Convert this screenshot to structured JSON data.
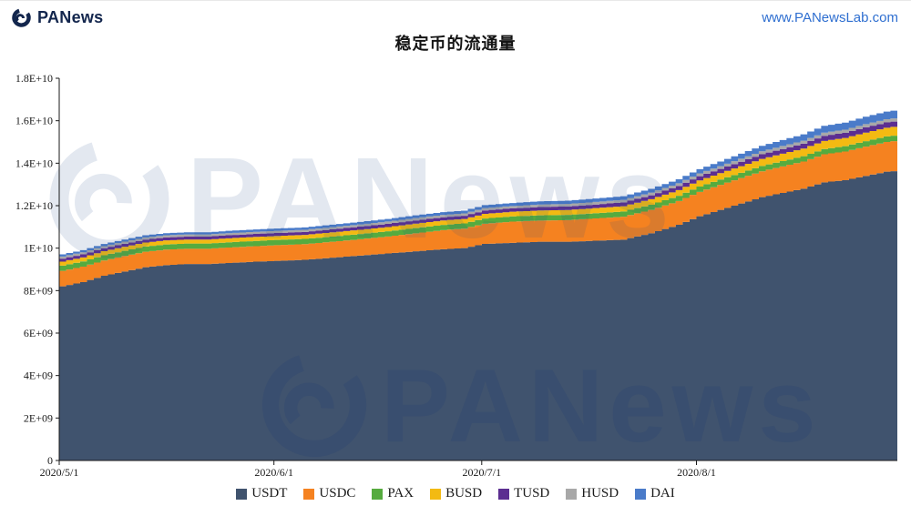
{
  "header": {
    "brand": "PANews",
    "url": "www.PANewsLab.com"
  },
  "title": "稳定币的流通量",
  "watermark": {
    "text": "PANews"
  },
  "colors": {
    "brand": "#13264d",
    "link": "#2f6fd0",
    "axis": "#1a1a1a",
    "watermark_top": "#2a4a8a",
    "watermark_bottom": "#1c3a74"
  },
  "chart_data": {
    "type": "area",
    "stacked": true,
    "title": "稳定币的流通量",
    "xlabel": "",
    "ylabel": "",
    "grid": false,
    "legend_position": "bottom",
    "x_unit": "days since 2020-05-01",
    "x_range": [
      0,
      121
    ],
    "y_range": [
      0,
      18000000000
    ],
    "value_unit": 1000000000,
    "x_ticks": [
      {
        "label": "2020/5/1",
        "day": 0
      },
      {
        "label": "2020/6/1",
        "day": 31
      },
      {
        "label": "2020/7/1",
        "day": 61
      },
      {
        "label": "2020/8/1",
        "day": 92
      }
    ],
    "y_ticks": [
      {
        "label": "0",
        "value": 0
      },
      {
        "label": "2E+09",
        "value": 2000000000
      },
      {
        "label": "4E+09",
        "value": 4000000000
      },
      {
        "label": "6E+09",
        "value": 6000000000
      },
      {
        "label": "8E+09",
        "value": 8000000000
      },
      {
        "label": "1E+10",
        "value": 10000000000
      },
      {
        "label": "1.2E+10",
        "value": 12000000000
      },
      {
        "label": "1.4E+10",
        "value": 14000000000
      },
      {
        "label": "1.6E+10",
        "value": 16000000000
      },
      {
        "label": "1.8E+10",
        "value": 18000000000
      }
    ],
    "x": [
      0,
      3,
      6,
      9,
      12,
      15,
      18,
      21,
      24,
      27,
      31,
      35,
      39,
      43,
      47,
      51,
      55,
      58,
      61,
      65,
      69,
      73,
      77,
      81,
      85,
      89,
      92,
      95,
      98,
      101,
      104,
      107,
      110,
      113,
      116,
      119,
      121
    ],
    "series": [
      {
        "name": "USDT",
        "color": "#40536e",
        "values": [
          8.2,
          8.4,
          8.7,
          8.9,
          9.1,
          9.2,
          9.25,
          9.25,
          9.3,
          9.35,
          9.4,
          9.45,
          9.55,
          9.65,
          9.75,
          9.85,
          9.95,
          10.0,
          10.2,
          10.25,
          10.3,
          10.3,
          10.35,
          10.4,
          10.7,
          11.1,
          11.5,
          11.8,
          12.1,
          12.4,
          12.6,
          12.8,
          13.1,
          13.2,
          13.4,
          13.6,
          13.65
        ]
      },
      {
        "name": "USDC",
        "color": "#f58220",
        "values": [
          0.73,
          0.73,
          0.72,
          0.73,
          0.73,
          0.73,
          0.72,
          0.72,
          0.73,
          0.73,
          0.74,
          0.74,
          0.75,
          0.77,
          0.8,
          0.85,
          0.9,
          0.92,
          0.95,
          1.0,
          1.0,
          1.02,
          1.05,
          1.08,
          1.1,
          1.12,
          1.15,
          1.18,
          1.2,
          1.22,
          1.25,
          1.28,
          1.32,
          1.35,
          1.38,
          1.4,
          1.42
        ]
      },
      {
        "name": "PAX",
        "color": "#56ab3f",
        "values": [
          0.245,
          0.245,
          0.245,
          0.245,
          0.245,
          0.245,
          0.245,
          0.245,
          0.245,
          0.245,
          0.245,
          0.245,
          0.245,
          0.245,
          0.245,
          0.245,
          0.245,
          0.245,
          0.245,
          0.245,
          0.245,
          0.245,
          0.245,
          0.245,
          0.245,
          0.245,
          0.25,
          0.25,
          0.25,
          0.25,
          0.25,
          0.25,
          0.25,
          0.25,
          0.26,
          0.26,
          0.26
        ]
      },
      {
        "name": "BUSD",
        "color": "#f3ba12",
        "values": [
          0.19,
          0.19,
          0.19,
          0.19,
          0.19,
          0.19,
          0.19,
          0.19,
          0.19,
          0.19,
          0.19,
          0.19,
          0.2,
          0.2,
          0.2,
          0.21,
          0.21,
          0.21,
          0.22,
          0.22,
          0.23,
          0.23,
          0.24,
          0.25,
          0.26,
          0.27,
          0.29,
          0.3,
          0.31,
          0.33,
          0.35,
          0.36,
          0.38,
          0.39,
          0.4,
          0.41,
          0.42
        ]
      },
      {
        "name": "TUSD",
        "color": "#5c2e91",
        "values": [
          0.14,
          0.14,
          0.14,
          0.14,
          0.14,
          0.14,
          0.14,
          0.14,
          0.14,
          0.14,
          0.14,
          0.14,
          0.14,
          0.15,
          0.15,
          0.15,
          0.15,
          0.15,
          0.16,
          0.16,
          0.16,
          0.17,
          0.17,
          0.18,
          0.18,
          0.19,
          0.2,
          0.2,
          0.21,
          0.22,
          0.22,
          0.23,
          0.24,
          0.24,
          0.25,
          0.25,
          0.25
        ]
      },
      {
        "name": "HUSD",
        "color": "#a8a8a8",
        "values": [
          0.1,
          0.1,
          0.1,
          0.1,
          0.1,
          0.1,
          0.1,
          0.1,
          0.1,
          0.1,
          0.1,
          0.1,
          0.1,
          0.1,
          0.11,
          0.11,
          0.11,
          0.11,
          0.11,
          0.11,
          0.12,
          0.12,
          0.12,
          0.12,
          0.13,
          0.13,
          0.13,
          0.13,
          0.14,
          0.14,
          0.14,
          0.14,
          0.15,
          0.15,
          0.15,
          0.15,
          0.15
        ]
      },
      {
        "name": "DAI",
        "color": "#4a7bc9",
        "values": [
          0.1,
          0.1,
          0.1,
          0.1,
          0.1,
          0.1,
          0.1,
          0.1,
          0.11,
          0.11,
          0.11,
          0.11,
          0.12,
          0.12,
          0.12,
          0.13,
          0.13,
          0.13,
          0.14,
          0.14,
          0.15,
          0.15,
          0.16,
          0.17,
          0.18,
          0.19,
          0.2,
          0.22,
          0.24,
          0.26,
          0.28,
          0.3,
          0.32,
          0.33,
          0.35,
          0.36,
          0.37
        ]
      }
    ]
  }
}
